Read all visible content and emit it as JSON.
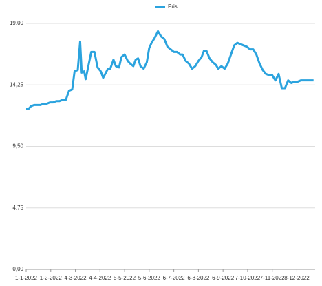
{
  "chart_data": {
    "type": "line",
    "legend": "top",
    "grid": true,
    "series": [
      {
        "name": "Pris",
        "color": "#2ba3de",
        "x": [
          0,
          3,
          6,
          10,
          14,
          18,
          22,
          26,
          30,
          34,
          38,
          42,
          46,
          50,
          54,
          58,
          61,
          65,
          68,
          70,
          73,
          75,
          78,
          82,
          86,
          90,
          94,
          97,
          103,
          106,
          110,
          113,
          117,
          120,
          124,
          128,
          131,
          135,
          138,
          141,
          144,
          148,
          152,
          155,
          158,
          162,
          166,
          170,
          174,
          178,
          182,
          186,
          190,
          194,
          197,
          201,
          205,
          209,
          213,
          217,
          221,
          224,
          227,
          231,
          235,
          239,
          242,
          246,
          250,
          254,
          258,
          262,
          266,
          270,
          274,
          278,
          282,
          286,
          290,
          294,
          298,
          302,
          306,
          310,
          314,
          318,
          322,
          326,
          330,
          334,
          338,
          342,
          346,
          350,
          356,
          362
        ],
        "values": [
          12.4,
          12.4,
          12.6,
          12.7,
          12.7,
          12.7,
          12.8,
          12.8,
          12.9,
          12.9,
          13.0,
          13.0,
          13.1,
          13.1,
          13.8,
          13.9,
          15.3,
          15.4,
          17.6,
          15.2,
          15.3,
          14.7,
          15.6,
          16.8,
          16.8,
          15.6,
          15.3,
          14.8,
          15.5,
          15.5,
          16.2,
          15.7,
          15.6,
          16.4,
          16.6,
          16.1,
          15.9,
          15.7,
          16.2,
          16.3,
          15.7,
          15.5,
          16.0,
          17.1,
          17.5,
          17.9,
          18.4,
          18.0,
          17.8,
          17.2,
          17.0,
          16.8,
          16.8,
          16.6,
          16.6,
          16.1,
          15.9,
          15.5,
          15.7,
          16.1,
          16.4,
          16.9,
          16.9,
          16.3,
          16.0,
          15.8,
          15.5,
          15.7,
          15.5,
          15.9,
          16.6,
          17.3,
          17.5,
          17.4,
          17.3,
          17.2,
          17.0,
          17.0,
          16.6,
          15.9,
          15.4,
          15.1,
          15.0,
          15.0,
          14.6,
          15.1,
          14.0,
          14.0,
          14.6,
          14.4,
          14.5,
          14.5,
          14.6,
          14.6,
          14.6,
          14.6
        ]
      }
    ],
    "xlim": [
      0,
      364
    ],
    "xticks": [
      {
        "value": 0,
        "label": "1-1-2022"
      },
      {
        "value": 31,
        "label": "1-2-2022"
      },
      {
        "value": 62,
        "label": "4-3-2022"
      },
      {
        "value": 93,
        "label": "4-4-2022"
      },
      {
        "value": 124,
        "label": "5-5-2022"
      },
      {
        "value": 155,
        "label": "5-6-2022"
      },
      {
        "value": 186,
        "label": "6-7-2022"
      },
      {
        "value": 217,
        "label": "6-8-2022"
      },
      {
        "value": 248,
        "label": "6-9-2022"
      },
      {
        "value": 279,
        "label": "7-10-2022"
      },
      {
        "value": 310,
        "label": "7-11-2022"
      },
      {
        "value": 341,
        "label": "8-12-2022"
      }
    ],
    "ylim": [
      0,
      19
    ],
    "yticks": [
      {
        "value": 0,
        "label": "0,00"
      },
      {
        "value": 4.75,
        "label": "4,75"
      },
      {
        "value": 9.5,
        "label": "9,50"
      },
      {
        "value": 14.25,
        "label": "14,25"
      },
      {
        "value": 19,
        "label": "19,00"
      }
    ]
  }
}
